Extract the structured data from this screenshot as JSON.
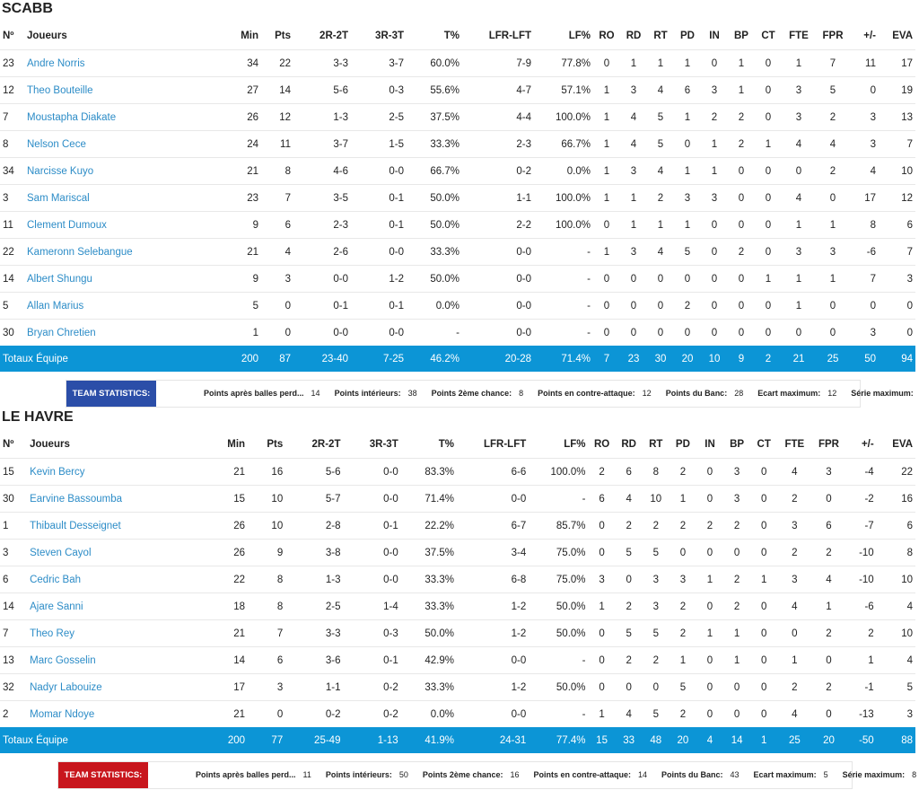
{
  "columns": [
    "Nº",
    "Joueurs",
    "Min",
    "Pts",
    "2R-2T",
    "3R-3T",
    "T%",
    "LFR-LFT",
    "LF%",
    "RO",
    "RD",
    "RT",
    "PD",
    "IN",
    "BP",
    "CT",
    "FTE",
    "FPR",
    "+/-",
    "EVA"
  ],
  "teams": [
    {
      "name": "SCABB",
      "players": [
        [
          "23",
          "Andre Norris",
          "34",
          "22",
          "3-3",
          "3-7",
          "60.0%",
          "7-9",
          "77.8%",
          "0",
          "1",
          "1",
          "1",
          "0",
          "1",
          "0",
          "1",
          "7",
          "11",
          "17"
        ],
        [
          "12",
          "Theo Bouteille",
          "27",
          "14",
          "5-6",
          "0-3",
          "55.6%",
          "4-7",
          "57.1%",
          "1",
          "3",
          "4",
          "6",
          "3",
          "1",
          "0",
          "3",
          "5",
          "0",
          "19"
        ],
        [
          "7",
          "Moustapha Diakate",
          "26",
          "12",
          "1-3",
          "2-5",
          "37.5%",
          "4-4",
          "100.0%",
          "1",
          "4",
          "5",
          "1",
          "2",
          "2",
          "0",
          "3",
          "2",
          "3",
          "13"
        ],
        [
          "8",
          "Nelson Cece",
          "24",
          "11",
          "3-7",
          "1-5",
          "33.3%",
          "2-3",
          "66.7%",
          "1",
          "4",
          "5",
          "0",
          "1",
          "2",
          "1",
          "4",
          "4",
          "3",
          "7"
        ],
        [
          "34",
          "Narcisse Kuyo",
          "21",
          "8",
          "4-6",
          "0-0",
          "66.7%",
          "0-2",
          "0.0%",
          "1",
          "3",
          "4",
          "1",
          "1",
          "0",
          "0",
          "0",
          "2",
          "4",
          "10"
        ],
        [
          "3",
          "Sam Mariscal",
          "23",
          "7",
          "3-5",
          "0-1",
          "50.0%",
          "1-1",
          "100.0%",
          "1",
          "1",
          "2",
          "3",
          "3",
          "0",
          "0",
          "4",
          "0",
          "17",
          "12"
        ],
        [
          "11",
          "Clement Dumoux",
          "9",
          "6",
          "2-3",
          "0-1",
          "50.0%",
          "2-2",
          "100.0%",
          "0",
          "1",
          "1",
          "1",
          "0",
          "0",
          "0",
          "1",
          "1",
          "8",
          "6"
        ],
        [
          "22",
          "Kameronn Selebangue",
          "21",
          "4",
          "2-6",
          "0-0",
          "33.3%",
          "0-0",
          "-",
          "1",
          "3",
          "4",
          "5",
          "0",
          "2",
          "0",
          "3",
          "3",
          "-6",
          "7"
        ],
        [
          "14",
          "Albert Shungu",
          "9",
          "3",
          "0-0",
          "1-2",
          "50.0%",
          "0-0",
          "-",
          "0",
          "0",
          "0",
          "0",
          "0",
          "0",
          "1",
          "1",
          "1",
          "7",
          "3"
        ],
        [
          "5",
          "Allan Marius",
          "5",
          "0",
          "0-1",
          "0-1",
          "0.0%",
          "0-0",
          "-",
          "0",
          "0",
          "0",
          "2",
          "0",
          "0",
          "0",
          "1",
          "0",
          "0",
          "0"
        ],
        [
          "30",
          "Bryan Chretien",
          "1",
          "0",
          "0-0",
          "0-0",
          "-",
          "0-0",
          "-",
          "0",
          "0",
          "0",
          "0",
          "0",
          "0",
          "0",
          "0",
          "0",
          "3",
          "0"
        ]
      ],
      "totals": [
        "Totaux Équipe",
        "200",
        "87",
        "23-40",
        "7-25",
        "46.2%",
        "20-28",
        "71.4%",
        "7",
        "23",
        "30",
        "20",
        "10",
        "9",
        "2",
        "21",
        "25",
        "50",
        "94"
      ],
      "team_stats_label": "TEAM STATISTICS:",
      "team_stats_color": "#2b4ea8",
      "team_stats": [
        {
          "k": "Points après balles perd...",
          "v": "14"
        },
        {
          "k": "Points intérieurs:",
          "v": "38"
        },
        {
          "k": "Points 2ème chance:",
          "v": "8"
        },
        {
          "k": "Points en contre-attaque:",
          "v": "12"
        },
        {
          "k": "Points du Banc:",
          "v": "28"
        },
        {
          "k": "Ecart maximum:",
          "v": "12"
        },
        {
          "k": "Série maximum:",
          "v": "8"
        }
      ]
    },
    {
      "name": "LE HAVRE",
      "players": [
        [
          "15",
          "Kevin Bercy",
          "21",
          "16",
          "5-6",
          "0-0",
          "83.3%",
          "6-6",
          "100.0%",
          "2",
          "6",
          "8",
          "2",
          "0",
          "3",
          "0",
          "4",
          "3",
          "-4",
          "22"
        ],
        [
          "30",
          "Earvine Bassoumba",
          "15",
          "10",
          "5-7",
          "0-0",
          "71.4%",
          "0-0",
          "-",
          "6",
          "4",
          "10",
          "1",
          "0",
          "3",
          "0",
          "2",
          "0",
          "-2",
          "16"
        ],
        [
          "1",
          "Thibault Desseignet",
          "26",
          "10",
          "2-8",
          "0-1",
          "22.2%",
          "6-7",
          "85.7%",
          "0",
          "2",
          "2",
          "2",
          "2",
          "2",
          "0",
          "3",
          "6",
          "-7",
          "6"
        ],
        [
          "3",
          "Steven Cayol",
          "26",
          "9",
          "3-8",
          "0-0",
          "37.5%",
          "3-4",
          "75.0%",
          "0",
          "5",
          "5",
          "0",
          "0",
          "0",
          "0",
          "2",
          "2",
          "-10",
          "8"
        ],
        [
          "6",
          "Cedric Bah",
          "22",
          "8",
          "1-3",
          "0-0",
          "33.3%",
          "6-8",
          "75.0%",
          "3",
          "0",
          "3",
          "3",
          "1",
          "2",
          "1",
          "3",
          "4",
          "-10",
          "10"
        ],
        [
          "14",
          "Ajare Sanni",
          "18",
          "8",
          "2-5",
          "1-4",
          "33.3%",
          "1-2",
          "50.0%",
          "1",
          "2",
          "3",
          "2",
          "0",
          "2",
          "0",
          "4",
          "1",
          "-6",
          "4"
        ],
        [
          "7",
          "Theo Rey",
          "21",
          "7",
          "3-3",
          "0-3",
          "50.0%",
          "1-2",
          "50.0%",
          "0",
          "5",
          "5",
          "2",
          "1",
          "1",
          "0",
          "0",
          "2",
          "2",
          "10"
        ],
        [
          "13",
          "Marc Gosselin",
          "14",
          "6",
          "3-6",
          "0-1",
          "42.9%",
          "0-0",
          "-",
          "0",
          "2",
          "2",
          "1",
          "0",
          "1",
          "0",
          "1",
          "0",
          "1",
          "4"
        ],
        [
          "32",
          "Nadyr Labouize",
          "17",
          "3",
          "1-1",
          "0-2",
          "33.3%",
          "1-2",
          "50.0%",
          "0",
          "0",
          "0",
          "5",
          "0",
          "0",
          "0",
          "2",
          "2",
          "-1",
          "5"
        ],
        [
          "2",
          "Momar Ndoye",
          "21",
          "0",
          "0-2",
          "0-2",
          "0.0%",
          "0-0",
          "-",
          "1",
          "4",
          "5",
          "2",
          "0",
          "0",
          "0",
          "4",
          "0",
          "-13",
          "3"
        ]
      ],
      "totals": [
        "Totaux Équipe",
        "200",
        "77",
        "25-49",
        "1-13",
        "41.9%",
        "24-31",
        "77.4%",
        "15",
        "33",
        "48",
        "20",
        "4",
        "14",
        "1",
        "25",
        "20",
        "-50",
        "88"
      ],
      "team_stats_label": "TEAM STATISTICS:",
      "team_stats_color": "#c8161d",
      "team_stats": [
        {
          "k": "Points après balles perd...",
          "v": "11"
        },
        {
          "k": "Points intérieurs:",
          "v": "50"
        },
        {
          "k": "Points 2ème chance:",
          "v": "16"
        },
        {
          "k": "Points en contre-attaque:",
          "v": "14"
        },
        {
          "k": "Points du Banc:",
          "v": "43"
        },
        {
          "k": "Ecart maximum:",
          "v": "5"
        },
        {
          "k": "Série maximum:",
          "v": "8"
        }
      ]
    }
  ]
}
